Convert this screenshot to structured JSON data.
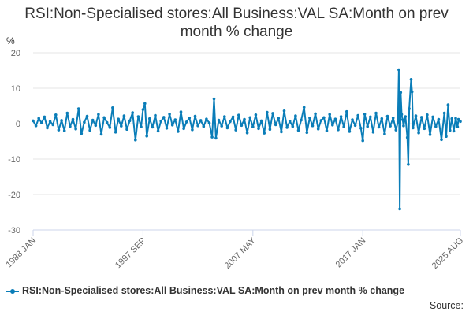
{
  "chart_data": {
    "type": "line",
    "title": "RSI:Non-Specialised stores:All Business:VAL SA:Month on prev month % change",
    "ylabel": "%",
    "ylim": [
      -30,
      20
    ],
    "yticks": [
      "20",
      "10",
      "0",
      "-10",
      "-20",
      "-30"
    ],
    "ytick_values": [
      20,
      10,
      0,
      -10,
      -20,
      -30
    ],
    "xlim": [
      "1988-01",
      "2025-08"
    ],
    "xticks": [
      "1988 JAN",
      "1997 SEP",
      "2007 MAY",
      "2017 JAN",
      "2025 AUG"
    ],
    "xtick_values": [
      "1988-01",
      "1997-09",
      "2007-05",
      "2017-01",
      "2025-08"
    ],
    "grid": true,
    "legend_position": "bottom",
    "series": [
      {
        "name": "RSI:Non-Specialised stores:All Business:VAL SA:Month on prev month % change",
        "color": "#0a7db8",
        "points": [
          [
            "1988-01",
            0.8
          ],
          [
            "1988-04",
            -0.6
          ],
          [
            "1988-07",
            1.5
          ],
          [
            "1988-10",
            0.2
          ],
          [
            "1989-01",
            1.9
          ],
          [
            "1989-04",
            -1.2
          ],
          [
            "1989-07",
            0.6
          ],
          [
            "1989-10",
            -0.3
          ],
          [
            "1990-01",
            2.5
          ],
          [
            "1990-04",
            -1.8
          ],
          [
            "1990-07",
            0.9
          ],
          [
            "1990-10",
            -2.0
          ],
          [
            "1991-01",
            3.0
          ],
          [
            "1991-04",
            -0.8
          ],
          [
            "1991-07",
            1.2
          ],
          [
            "1991-10",
            -1.5
          ],
          [
            "1992-01",
            4.2
          ],
          [
            "1992-04",
            -2.8
          ],
          [
            "1992-07",
            0.4
          ],
          [
            "1992-10",
            2.1
          ],
          [
            "1993-01",
            -1.9
          ],
          [
            "1993-04",
            1.0
          ],
          [
            "1993-07",
            -0.5
          ],
          [
            "1993-10",
            2.6
          ],
          [
            "1994-01",
            -3.0
          ],
          [
            "1994-04",
            1.7
          ],
          [
            "1994-07",
            0.3
          ],
          [
            "1994-10",
            -1.1
          ],
          [
            "1995-01",
            4.5
          ],
          [
            "1995-04",
            -2.4
          ],
          [
            "1995-07",
            1.3
          ],
          [
            "1995-10",
            -0.7
          ],
          [
            "1996-01",
            2.2
          ],
          [
            "1996-04",
            -1.6
          ],
          [
            "1996-07",
            0.8
          ],
          [
            "1996-10",
            3.1
          ],
          [
            "1997-01",
            -4.6
          ],
          [
            "1997-04",
            2.0
          ],
          [
            "1997-07",
            -0.9
          ],
          [
            "1997-09",
            4.0
          ],
          [
            "1997-11",
            5.7
          ],
          [
            "1998-01",
            -3.5
          ],
          [
            "1998-04",
            1.4
          ],
          [
            "1998-07",
            -1.0
          ],
          [
            "1998-10",
            2.3
          ],
          [
            "1999-01",
            -2.1
          ],
          [
            "1999-04",
            0.7
          ],
          [
            "1999-07",
            1.8
          ],
          [
            "1999-10",
            -1.3
          ],
          [
            "2000-01",
            2.7
          ],
          [
            "2000-04",
            -0.4
          ],
          [
            "2000-07",
            1.1
          ],
          [
            "2000-10",
            -2.2
          ],
          [
            "2001-01",
            3.3
          ],
          [
            "2001-04",
            -1.4
          ],
          [
            "2001-07",
            0.5
          ],
          [
            "2001-10",
            1.6
          ],
          [
            "2002-01",
            -1.7
          ],
          [
            "2002-04",
            2.1
          ],
          [
            "2002-07",
            -0.6
          ],
          [
            "2002-10",
            0.9
          ],
          [
            "2003-01",
            -0.8
          ],
          [
            "2003-04",
            1.3
          ],
          [
            "2003-07",
            0.2
          ],
          [
            "2003-10",
            -3.8
          ],
          [
            "2003-12",
            7.0
          ],
          [
            "2004-02",
            -4.1
          ],
          [
            "2004-05",
            1.0
          ],
          [
            "2004-08",
            -0.7
          ],
          [
            "2004-11",
            2.0
          ],
          [
            "2005-02",
            -1.2
          ],
          [
            "2005-05",
            0.6
          ],
          [
            "2005-08",
            1.9
          ],
          [
            "2005-11",
            -1.8
          ],
          [
            "2006-02",
            2.4
          ],
          [
            "2006-05",
            -0.5
          ],
          [
            "2006-08",
            1.2
          ],
          [
            "2006-11",
            -2.6
          ],
          [
            "2007-02",
            1.7
          ],
          [
            "2007-05",
            -0.9
          ],
          [
            "2007-08",
            2.5
          ],
          [
            "2007-11",
            -1.4
          ],
          [
            "2008-02",
            0.8
          ],
          [
            "2008-05",
            -2.7
          ],
          [
            "2008-08",
            3.2
          ],
          [
            "2008-11",
            -1.6
          ],
          [
            "2009-02",
            2.9
          ],
          [
            "2009-05",
            -0.3
          ],
          [
            "2009-08",
            1.5
          ],
          [
            "2009-11",
            -2.3
          ],
          [
            "2010-02",
            3.6
          ],
          [
            "2010-05",
            -1.1
          ],
          [
            "2010-08",
            0.7
          ],
          [
            "2010-11",
            -0.8
          ],
          [
            "2011-02",
            2.2
          ],
          [
            "2011-05",
            -1.9
          ],
          [
            "2011-08",
            1.0
          ],
          [
            "2011-11",
            4.6
          ],
          [
            "2012-02",
            -2.5
          ],
          [
            "2012-05",
            1.6
          ],
          [
            "2012-08",
            -0.6
          ],
          [
            "2012-11",
            2.8
          ],
          [
            "2013-02",
            -1.5
          ],
          [
            "2013-05",
            0.9
          ],
          [
            "2013-08",
            1.7
          ],
          [
            "2013-11",
            -2.0
          ],
          [
            "2014-02",
            2.6
          ],
          [
            "2014-05",
            -0.4
          ],
          [
            "2014-08",
            1.3
          ],
          [
            "2014-11",
            -1.7
          ],
          [
            "2015-02",
            2.0
          ],
          [
            "2015-05",
            -0.9
          ],
          [
            "2015-08",
            3.4
          ],
          [
            "2015-11",
            -2.2
          ],
          [
            "2016-02",
            1.1
          ],
          [
            "2016-05",
            -0.5
          ],
          [
            "2016-08",
            2.3
          ],
          [
            "2016-11",
            -1.3
          ],
          [
            "2017-01",
            -4.8
          ],
          [
            "2017-03",
            2.7
          ],
          [
            "2017-06",
            -0.8
          ],
          [
            "2017-09",
            1.9
          ],
          [
            "2017-12",
            -2.4
          ],
          [
            "2018-03",
            3.0
          ],
          [
            "2018-06",
            -1.0
          ],
          [
            "2018-09",
            1.4
          ],
          [
            "2018-12",
            -2.9
          ],
          [
            "2019-03",
            2.1
          ],
          [
            "2019-06",
            -0.7
          ],
          [
            "2019-09",
            1.6
          ],
          [
            "2019-12",
            -1.8
          ],
          [
            "2020-02",
            0.5
          ],
          [
            "2020-03",
            15.2
          ],
          [
            "2020-04",
            -24.1
          ],
          [
            "2020-05",
            8.8
          ],
          [
            "2020-06",
            2.6
          ],
          [
            "2020-07",
            1.1
          ],
          [
            "2020-08",
            -0.6
          ],
          [
            "2020-10",
            2.0
          ],
          [
            "2020-12",
            -3.9
          ],
          [
            "2021-01",
            -11.5
          ],
          [
            "2021-02",
            4.2
          ],
          [
            "2021-04",
            12.5
          ],
          [
            "2021-05",
            9.0
          ],
          [
            "2021-06",
            -1.2
          ],
          [
            "2021-09",
            2.2
          ],
          [
            "2021-12",
            -2.6
          ],
          [
            "2022-03",
            1.8
          ],
          [
            "2022-06",
            -1.4
          ],
          [
            "2022-09",
            2.5
          ],
          [
            "2022-12",
            -3.1
          ],
          [
            "2023-03",
            1.9
          ],
          [
            "2023-06",
            -0.8
          ],
          [
            "2023-09",
            1.2
          ],
          [
            "2023-12",
            -4.5
          ],
          [
            "2024-03",
            3.0
          ],
          [
            "2024-05",
            -3.6
          ],
          [
            "2024-07",
            5.3
          ],
          [
            "2024-09",
            -1.9
          ],
          [
            "2024-11",
            1.4
          ],
          [
            "2025-01",
            -2.1
          ],
          [
            "2025-03",
            1.5
          ],
          [
            "2025-05",
            -0.9
          ],
          [
            "2025-06",
            1.2
          ],
          [
            "2025-08",
            0.6
          ]
        ]
      }
    ],
    "source_label": "Source:"
  }
}
